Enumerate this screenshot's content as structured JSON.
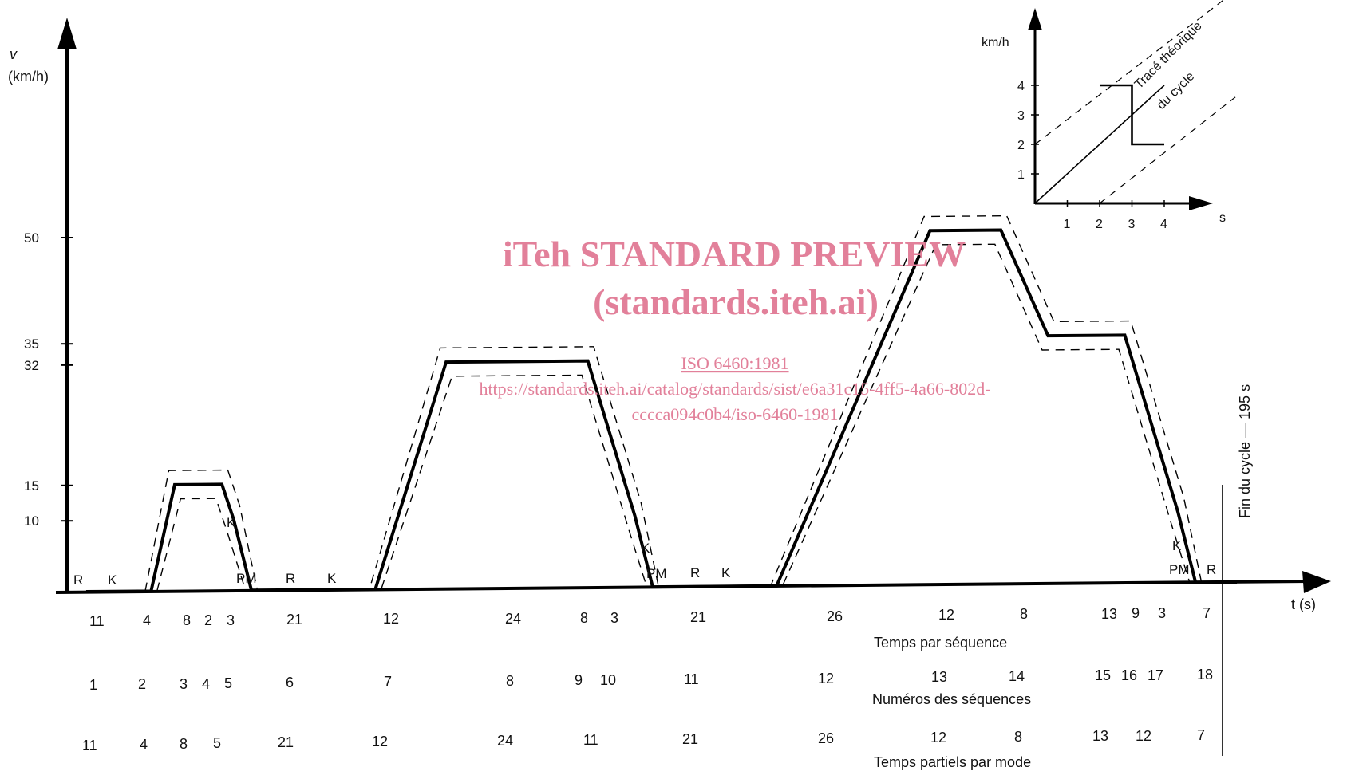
{
  "chart_data": [
    {
      "type": "line",
      "y_axis_symbol": "v",
      "y_axis_unit": "(km/h)",
      "x_axis_label": "t (s)",
      "ylim": [
        0,
        50
      ],
      "y_ticks": [
        "10",
        "15",
        "32",
        "35",
        "50"
      ],
      "series": [
        {
          "x": [
            0,
            11,
            15,
            23,
            25,
            28,
            49,
            61,
            85,
            93,
            96,
            117,
            143,
            155,
            163,
            176,
            185,
            188,
            195
          ],
          "y": [
            0,
            0,
            15,
            15,
            10,
            0,
            0,
            32,
            32,
            10,
            0,
            0,
            50,
            50,
            35,
            35,
            10,
            0,
            0
          ]
        }
      ],
      "mode_labels": [
        "R",
        "K",
        "K",
        "PM",
        "R",
        "K",
        "K",
        "PM",
        "R",
        "K",
        "K",
        "PM",
        "R"
      ],
      "end_label": "Fin du cycle — 195 s",
      "rows": [
        {
          "title": "Temps par séquence",
          "values": [
            "11",
            "4",
            "8",
            "2",
            "3",
            "21",
            "12",
            "24",
            "8",
            "3",
            "21",
            "26",
            "12",
            "8",
            "13",
            "9",
            "3",
            "7"
          ]
        },
        {
          "title": "Numéros des séquences",
          "values": [
            "1",
            "2",
            "3",
            "4",
            "5",
            "6",
            "7",
            "8",
            "9",
            "10",
            "11",
            "12",
            "13",
            "14",
            "15",
            "16",
            "17",
            "18"
          ]
        },
        {
          "title": "Temps partiels par mode",
          "values": [
            "11",
            "4",
            "8",
            "5",
            "21",
            "12",
            "24",
            "11",
            "21",
            "26",
            "12",
            "8",
            "13",
            "12",
            "7"
          ]
        }
      ]
    },
    {
      "type": "line",
      "y_axis_unit": "km/h",
      "x_axis_unit": "s",
      "xlim": [
        0,
        4
      ],
      "ylim": [
        0,
        4
      ],
      "x_ticks": [
        "1",
        "2",
        "3",
        "4"
      ],
      "y_ticks": [
        "1",
        "2",
        "3",
        "4"
      ],
      "annotation_line1": "Tracé théorique",
      "annotation_line2": "du cycle",
      "series": [
        {
          "x": [
            0,
            4
          ],
          "y": [
            0,
            4
          ]
        },
        {
          "x": [
            2,
            3,
            3,
            4
          ],
          "y": [
            4,
            4,
            2,
            2
          ]
        }
      ]
    }
  ],
  "watermark": {
    "line1": "iTeh STANDARD PREVIEW",
    "line2": "(standards.iteh.ai)",
    "line3": "ISO 6460:1981",
    "line4": "https://standards.iteh.ai/catalog/standards/sist/e6a31c15-4ff5-4a66-802d-",
    "line5": "cccca094c0b4/iso-6460-1981"
  }
}
